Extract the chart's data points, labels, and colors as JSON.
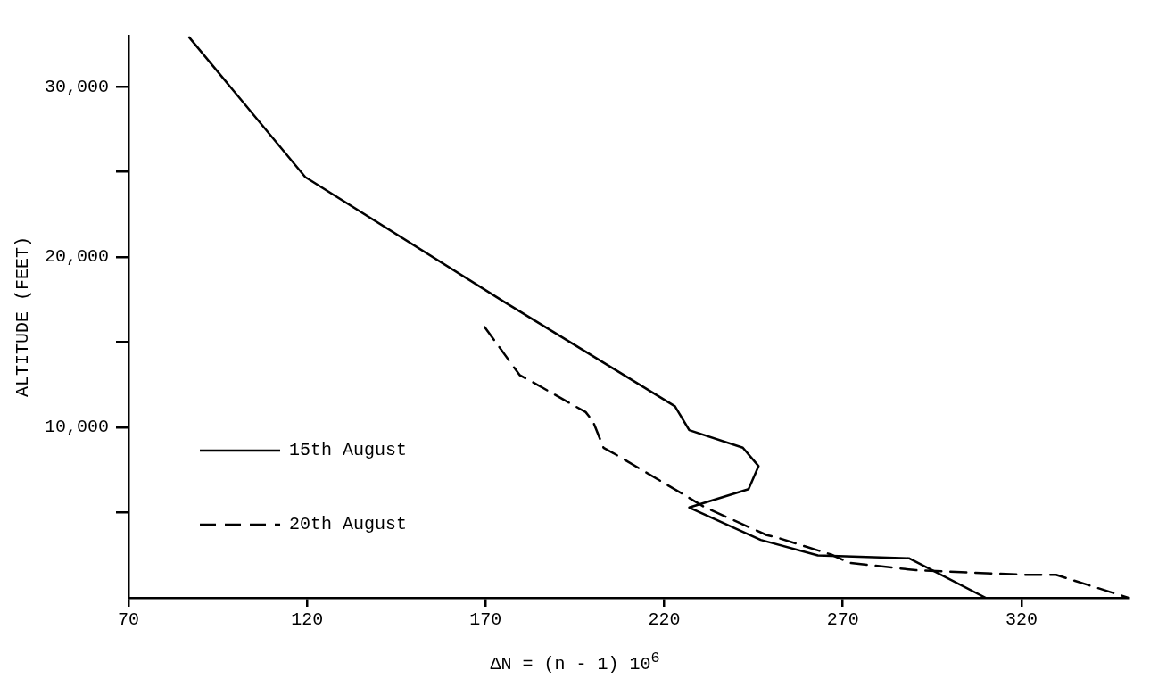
{
  "chart_data": {
    "type": "line",
    "xlabel": "ΔN = (n - 1) 10$^{6}$",
    "ylabel": "ALTITUDE (FEET)",
    "xlim": [
      70,
      350
    ],
    "ylim": [
      0,
      33000
    ],
    "xticks": [
      70,
      120,
      170,
      220,
      270,
      320
    ],
    "yticks": [
      {
        "value": 5000,
        "label": null
      },
      {
        "value": 10000,
        "label": "10,000"
      },
      {
        "value": 15000,
        "label": null
      },
      {
        "value": 20000,
        "label": "20,000"
      },
      {
        "value": 25000,
        "label": null
      },
      {
        "value": 30000,
        "label": "30,000"
      }
    ],
    "grid": false,
    "legend": "bottom left",
    "marker": "none",
    "series": [
      {
        "name": "15th August",
        "color": "#000000",
        "line_style": "solid",
        "x": [
          87,
          119.5,
          175,
          223,
          227,
          242,
          246.4,
          243.6,
          227,
          247,
          263,
          288.5,
          310
        ],
        "values": [
          32900,
          24700,
          17400,
          11240,
          9840,
          8810,
          7730,
          6380,
          5300,
          3400,
          2490,
          2320,
          0
        ]
      },
      {
        "name": "20th August",
        "color": "#000000",
        "line_style": "dashed",
        "x": [
          169.7,
          179.5,
          182.8,
          198,
          200,
          203,
          206.7,
          231.5,
          248.7,
          252,
          266.7,
          271.8,
          290.5,
          321,
          329.7,
          350
        ],
        "values": [
          15900,
          13080,
          12700,
          10900,
          10380,
          8810,
          8380,
          5300,
          3680,
          3510,
          2540,
          2050,
          1620,
          1350,
          1350,
          0
        ]
      }
    ]
  }
}
